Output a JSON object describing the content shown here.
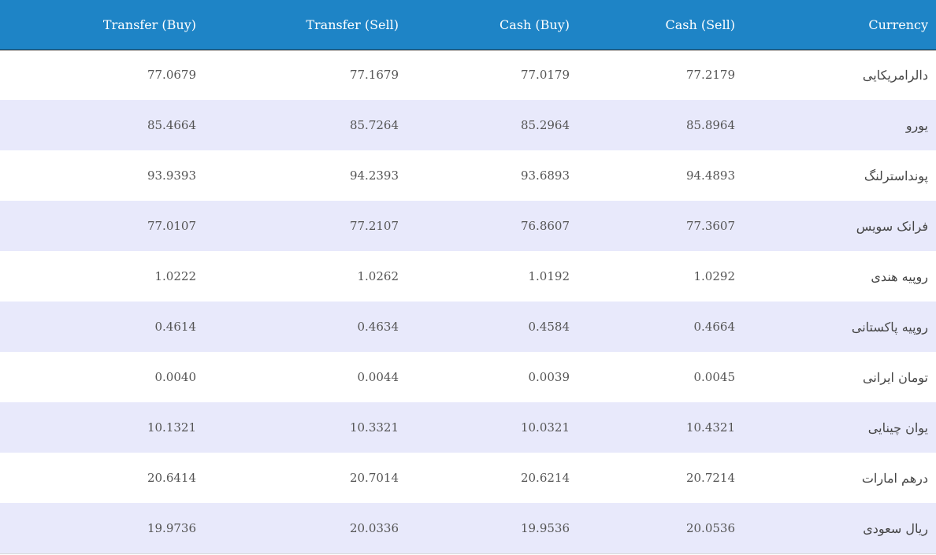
{
  "table": {
    "headers": {
      "transfer_buy": "Transfer (Buy)",
      "transfer_sell": "Transfer (Sell)",
      "cash_buy": "Cash (Buy)",
      "cash_sell": "Cash (Sell)",
      "currency": "Currency"
    },
    "rows": [
      {
        "currency": "دالرامریکایی",
        "cash_sell": "77.2179",
        "cash_buy": "77.0179",
        "transfer_sell": "77.1679",
        "transfer_buy": "77.0679"
      },
      {
        "currency": "یورو",
        "cash_sell": "85.8964",
        "cash_buy": "85.2964",
        "transfer_sell": "85.7264",
        "transfer_buy": "85.4664"
      },
      {
        "currency": "پونداسترلنگ",
        "cash_sell": "94.4893",
        "cash_buy": "93.6893",
        "transfer_sell": "94.2393",
        "transfer_buy": "93.9393"
      },
      {
        "currency": "فرانک سویس",
        "cash_sell": "77.3607",
        "cash_buy": "76.8607",
        "transfer_sell": "77.2107",
        "transfer_buy": "77.0107"
      },
      {
        "currency": "روپیه هندی",
        "cash_sell": "1.0292",
        "cash_buy": "1.0192",
        "transfer_sell": "1.0262",
        "transfer_buy": "1.0222"
      },
      {
        "currency": "روپیه پاکستانی",
        "cash_sell": "0.4664",
        "cash_buy": "0.4584",
        "transfer_sell": "0.4634",
        "transfer_buy": "0.4614"
      },
      {
        "currency": "تومان ایرانی",
        "cash_sell": "0.0045",
        "cash_buy": "0.0039",
        "transfer_sell": "0.0044",
        "transfer_buy": "0.0040"
      },
      {
        "currency": "یوان چینایی",
        "cash_sell": "10.4321",
        "cash_buy": "10.0321",
        "transfer_sell": "10.3321",
        "transfer_buy": "10.1321"
      },
      {
        "currency": "درهم امارات",
        "cash_sell": "20.7214",
        "cash_buy": "20.6214",
        "transfer_sell": "20.7014",
        "transfer_buy": "20.6414"
      },
      {
        "currency": "ریال سعودی",
        "cash_sell": "20.0536",
        "cash_buy": "19.9536",
        "transfer_sell": "20.0336",
        "transfer_buy": "19.9736"
      }
    ]
  },
  "colors": {
    "header_bg": "#1e84c6",
    "header_text": "#ffffff",
    "row_alt_bg": "#e8e9fb",
    "row_bg": "#ffffff",
    "cell_text": "#555555"
  }
}
